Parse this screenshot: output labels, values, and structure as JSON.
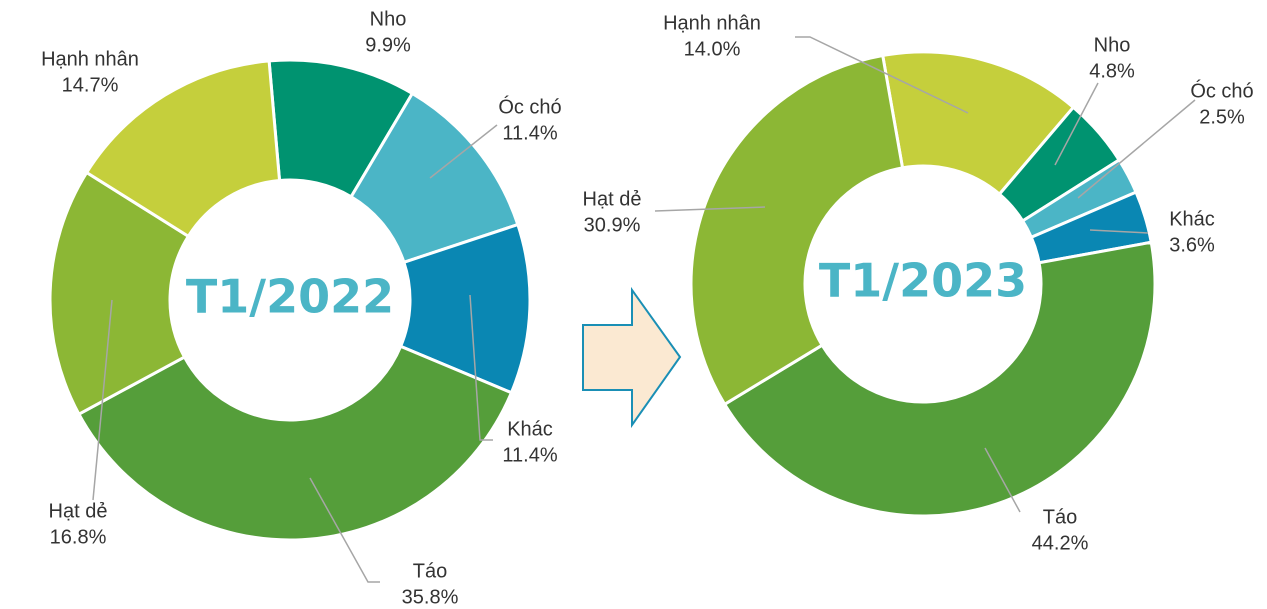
{
  "chart_data": [
    {
      "type": "donut",
      "title": "T1/2022",
      "categories": [
        "Nho",
        "Óc chó",
        "Khác",
        "Táo",
        "Hạt dẻ",
        "Hạnh nhân"
      ],
      "values": [
        9.9,
        11.4,
        11.4,
        35.8,
        16.8,
        14.7
      ],
      "value_labels": [
        "9.9%",
        "11.4%",
        "11.4%",
        "35.8%",
        "16.8%",
        "14.7%"
      ],
      "colors": [
        "#009370",
        "#4bb5c6",
        "#0a87b3",
        "#559e3a",
        "#8cb735",
        "#c5cf3c"
      ]
    },
    {
      "type": "donut",
      "title": "T1/2023",
      "categories": [
        "Hạnh nhân",
        "Nho",
        "Óc chó",
        "Khác",
        "Táo",
        "Hạt dẻ"
      ],
      "values": [
        14.0,
        4.8,
        2.5,
        3.6,
        44.2,
        30.9
      ],
      "value_labels": [
        "14.0%",
        "4.8%",
        "2.5%",
        "3.6%",
        "44.2%",
        "30.9%"
      ],
      "colors": [
        "#c5cf3c",
        "#009370",
        "#4bb5c6",
        "#0a87b3",
        "#559e3a",
        "#8cb735"
      ]
    }
  ]
}
